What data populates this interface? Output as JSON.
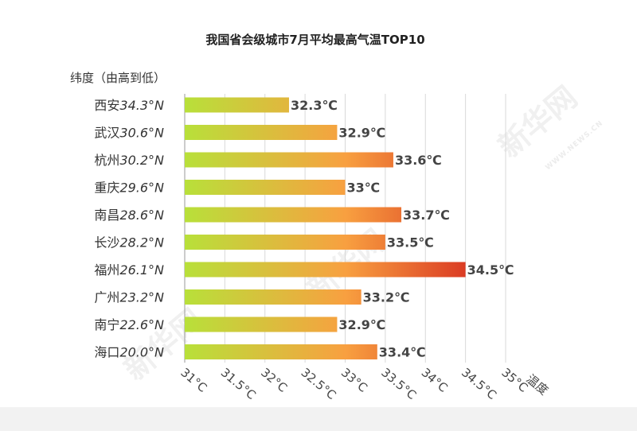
{
  "chart_data": {
    "type": "bar",
    "orientation": "horizontal",
    "title": "我国省会级城市7月平均最高气温TOP10",
    "ylabel": "纬度（由高到低）",
    "xlabel": "温度",
    "xlim": [
      31,
      35
    ],
    "xticks": [
      "31°C",
      "31.5°C",
      "32°C",
      "32.5°C",
      "33°C",
      "33.5°C",
      "34°C",
      "34.5°C",
      "35°C"
    ],
    "grid": "vertical",
    "cities": [
      "西安",
      "武汉",
      "杭州",
      "重庆",
      "南昌",
      "长沙",
      "福州",
      "广州",
      "南宁",
      "海口"
    ],
    "latitudes": [
      "34.3°N",
      "30.6°N",
      "30.2°N",
      "29.6°N",
      "28.6°N",
      "28.2°N",
      "26.1°N",
      "23.2°N",
      "22.6°N",
      "20.0°N"
    ],
    "values": [
      32.3,
      32.9,
      33.6,
      33,
      33.7,
      33.5,
      34.5,
      33.2,
      32.9,
      33.4
    ],
    "value_labels": [
      "32.3℃",
      "32.9℃",
      "33.6℃",
      "33℃",
      "33.7℃",
      "33.5℃",
      "34.5℃",
      "33.2℃",
      "32.9℃",
      "33.4℃"
    ],
    "colors": {
      "low": "#b8e03a",
      "mid": "#f8a040",
      "high": "#d11a1a",
      "grid": "#d9d9d9",
      "axis": "#9a9a9a"
    }
  },
  "watermark": {
    "brand": "新华网",
    "site": "WWW.NEWS.CN"
  }
}
